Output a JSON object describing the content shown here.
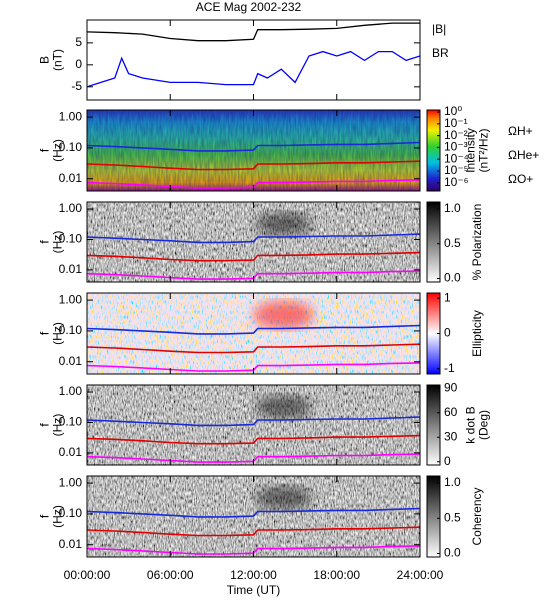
{
  "chart_data": [
    {
      "type": "line",
      "title": "ACE Mag 2002-232",
      "ylabel": [
        "B",
        "(nT)"
      ],
      "xlim": [
        0,
        24
      ],
      "ylim": [
        -8,
        10.2
      ],
      "yticks": [
        5,
        0,
        -5
      ],
      "series": [
        {
          "name": "|B|",
          "color": "#000000",
          "x": [
            0,
            2,
            4,
            6,
            8,
            10,
            12,
            12.3,
            14,
            16,
            18,
            20,
            22,
            24
          ],
          "values": [
            7.5,
            7.3,
            7,
            6,
            5.5,
            5.5,
            5.8,
            8,
            8,
            8.1,
            8.3,
            9,
            9.5,
            9.5
          ]
        },
        {
          "name": "BR",
          "color": "#0000ff",
          "x": [
            0,
            1,
            2,
            2.5,
            3,
            4,
            6,
            8,
            10,
            12,
            12.3,
            13,
            14,
            15,
            16,
            17,
            18,
            19,
            20,
            21,
            22,
            23,
            24
          ],
          "values": [
            -5,
            -4,
            -3,
            1.5,
            -2,
            -3,
            -4,
            -4,
            -4.5,
            -4.5,
            -2,
            -3,
            -1,
            -4,
            2,
            3,
            2,
            3,
            1,
            3,
            3,
            1,
            2
          ]
        }
      ]
    },
    {
      "type": "spectrogram",
      "ylabel": [
        "f",
        "(Hz)"
      ],
      "xlim": [
        0,
        24
      ],
      "yscale": "log",
      "ylim": [
        0.004,
        1.7
      ],
      "yticks": [
        {
          "value": 1,
          "label": "1.00"
        },
        {
          "value": 0.1,
          "label": "0.10"
        },
        {
          "value": 0.01,
          "label": "0.01"
        }
      ],
      "colormap": "rainbow",
      "colorbar": {
        "label": [
          "Intensity",
          "(nT²/Hz)"
        ],
        "scale": "log",
        "lim": [
          2e-07,
          1.5
        ],
        "ticks": [
          {
            "value": 1,
            "label": "10⁰"
          },
          {
            "value": 0.1,
            "label": "10⁻¹"
          },
          {
            "value": 0.01,
            "label": "10⁻²"
          },
          {
            "value": 0.001,
            "label": "10⁻³"
          },
          {
            "value": 0.0001,
            "label": "10⁻⁴"
          },
          {
            "value": 1e-05,
            "label": "10⁻⁵"
          },
          {
            "value": 1e-06,
            "label": "10⁻⁶"
          }
        ]
      },
      "series": [
        {
          "name": "ΩH+",
          "color": "#1a2ad8",
          "x": [
            0,
            2,
            4,
            6,
            8,
            10,
            12,
            12.3,
            14,
            16,
            18,
            20,
            22,
            24
          ],
          "values": [
            0.12,
            0.11,
            0.1,
            0.09,
            0.08,
            0.08,
            0.085,
            0.12,
            0.12,
            0.125,
            0.13,
            0.13,
            0.14,
            0.15
          ]
        },
        {
          "name": "ΩHe+",
          "color": "#e00000",
          "x": [
            0,
            2,
            4,
            6,
            8,
            10,
            12,
            12.3,
            14,
            16,
            18,
            20,
            22,
            24
          ],
          "values": [
            0.03,
            0.028,
            0.025,
            0.022,
            0.02,
            0.02,
            0.021,
            0.03,
            0.03,
            0.031,
            0.033,
            0.033,
            0.035,
            0.037
          ]
        },
        {
          "name": "ΩO+",
          "color": "#ff00ff",
          "x": [
            0,
            2,
            4,
            6,
            8,
            10,
            12,
            12.3,
            14,
            16,
            18,
            20,
            22,
            24
          ],
          "values": [
            0.0075,
            0.007,
            0.0063,
            0.0056,
            0.005,
            0.005,
            0.0053,
            0.0075,
            0.0075,
            0.0078,
            0.0082,
            0.0082,
            0.0088,
            0.0092
          ]
        }
      ]
    },
    {
      "type": "spectrogram",
      "ylabel": [
        "f",
        "(Hz)"
      ],
      "xlim": [
        0,
        24
      ],
      "yscale": "log",
      "ylim": [
        0.004,
        1.7
      ],
      "yticks": [
        {
          "value": 1,
          "label": "1.00"
        },
        {
          "value": 0.1,
          "label": "0.10"
        },
        {
          "value": 0.01,
          "label": "0.01"
        }
      ],
      "colormap": "gray",
      "colorbar": {
        "label": [
          "% Polarization"
        ],
        "scale": "linear",
        "lim": [
          -0.05,
          1.1
        ],
        "ticks": [
          {
            "value": 1,
            "label": "1.0"
          },
          {
            "value": 0.5,
            "label": "0.5"
          },
          {
            "value": 0,
            "label": "0.0"
          }
        ]
      }
    },
    {
      "type": "spectrogram",
      "ylabel": [
        "f",
        "(Hz)"
      ],
      "xlim": [
        0,
        24
      ],
      "yscale": "log",
      "ylim": [
        0.004,
        1.7
      ],
      "yticks": [
        {
          "value": 1,
          "label": "1.00"
        },
        {
          "value": 0.1,
          "label": "0.10"
        },
        {
          "value": 0.01,
          "label": "0.01"
        }
      ],
      "colormap": "bwr",
      "colorbar": {
        "label": [
          "Ellipticity"
        ],
        "scale": "linear",
        "lim": [
          -1.15,
          1.15
        ],
        "ticks": [
          1,
          0,
          -1
        ]
      }
    },
    {
      "type": "spectrogram",
      "ylabel": [
        "f",
        "(Hz)"
      ],
      "xlim": [
        0,
        24
      ],
      "yscale": "log",
      "ylim": [
        0.004,
        1.7
      ],
      "yticks": [
        {
          "value": 1,
          "label": "1.00"
        },
        {
          "value": 0.1,
          "label": "0.10"
        },
        {
          "value": 0.01,
          "label": "0.01"
        }
      ],
      "colormap": "gray",
      "colorbar": {
        "label": [
          "k dot B",
          "(Deg)"
        ],
        "scale": "linear",
        "lim": [
          -4,
          94
        ],
        "ticks": [
          90,
          60,
          30,
          0
        ]
      }
    },
    {
      "type": "spectrogram",
      "ylabel": [
        "f",
        "(Hz)"
      ],
      "xlim": [
        0,
        24
      ],
      "yscale": "log",
      "ylim": [
        0.004,
        1.7
      ],
      "yticks": [
        {
          "value": 1,
          "label": "1.00"
        },
        {
          "value": 0.1,
          "label": "0.10"
        },
        {
          "value": 0.01,
          "label": "0.01"
        }
      ],
      "colormap": "gray",
      "colorbar": {
        "label": [
          "Coherency"
        ],
        "scale": "linear",
        "lim": [
          -0.05,
          1.1
        ],
        "ticks": [
          {
            "value": 1,
            "label": "1.0"
          },
          {
            "value": 0.5,
            "label": "0.5"
          },
          {
            "value": 0,
            "label": "0.0"
          }
        ]
      },
      "xlabel": "Time (UT)",
      "xticks": [
        {
          "value": 0,
          "label": "00:00:00"
        },
        {
          "value": 6,
          "label": "06:00:00"
        },
        {
          "value": 12,
          "label": "12:00:00"
        },
        {
          "value": 18,
          "label": "18:00:00"
        },
        {
          "value": 24,
          "label": "24:00:00"
        }
      ]
    }
  ]
}
